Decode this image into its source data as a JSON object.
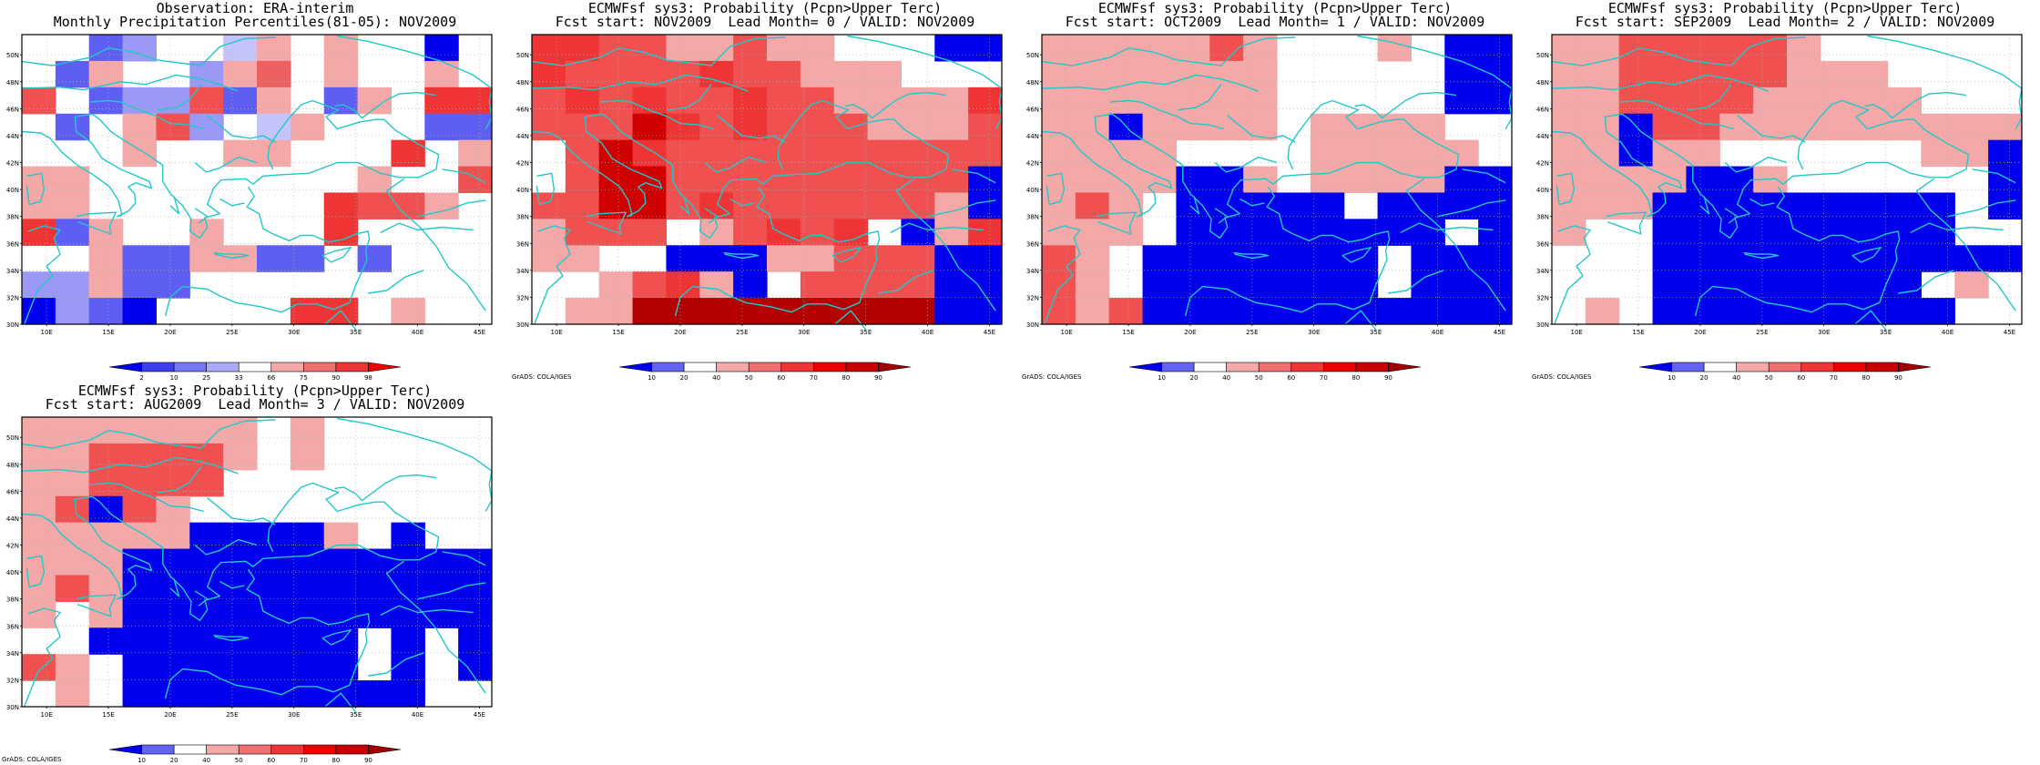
{
  "panels": [
    {
      "title1": "Observation: ERA-interim",
      "title2": "Monthly Precipitation Percentiles(81-05): NOV2009",
      "colorbar": {
        "labels": [
          "2",
          "10",
          "25",
          "33",
          "66",
          "75",
          "90",
          "98"
        ],
        "colors": [
          "#0000ee",
          "#3d3df2",
          "#7777f5",
          "#aaaaf8",
          "#ffffff",
          "#f4a8a8",
          "#f07070",
          "#ee3434",
          "#ee0000"
        ]
      },
      "show_grads_tag": false,
      "grid": [
        "WWMHWWKLWLWWNW",
        "WMLWWHLPWLWWLW",
        "RWMHHRMLWMLWSS",
        "WMWLRHWKLWWWMM",
        "WWWLWWLLWWWSWL",
        "LLWWWWWWWWLWWR",
        "LLWWWWWWWSRRLW",
        "SMLWWLWWWSWWWW",
        "WWLMMLLMMWMWWW",
        "HHLMMWWWWWWWWW",
        "NHMNWWWWSSWLWW"
      ]
    },
    {
      "title1": "ECMWFsf sys3: Probability (Pcpn>Upper Terc)",
      "title2": "Fcst start: NOV2009  Lead Month= 0 / VALID: NOV2009",
      "colorbar": {
        "labels": [
          "10",
          "20",
          "40",
          "50",
          "60",
          "70",
          "80",
          "90"
        ],
        "colors": [
          "#0000ee",
          "#6464f4",
          "#ffffff",
          "#f4a8a8",
          "#f07070",
          "#ee3434",
          "#ee0000",
          "#c80000",
          "#a00000"
        ]
      },
      "show_grads_tag": true,
      "grid": [
        "SSRRLLRLLWWWNN",
        "SRRRRSRRLLLWWW",
        "RSRSRRSRRLLLLS",
        "RRRFSRSRRRLLLR",
        "WRFSRRRRRRRRRR",
        "WRFFRRRRRRRRRN",
        "RRFFRSRRRRRRLN",
        "LRRRWLRSRSWNLS",
        "LLWWNNNLLRRRNN",
        "WWLRSLNWRRRRNN",
        "WLLDDDDDDDDDNN"
      ]
    },
    {
      "title1": "ECMWFsf sys3: Probability (Pcpn>Upper Terc)",
      "title2": "Fcst start: OCT2009  Lead Month= 1 / VALID: NOV2009",
      "colorbar": {
        "labels": [
          "10",
          "20",
          "40",
          "50",
          "60",
          "70",
          "80",
          "90"
        ],
        "colors": [
          "#0000ee",
          "#6464f4",
          "#ffffff",
          "#f4a8a8",
          "#f07070",
          "#ee3434",
          "#ee0000",
          "#c80000",
          "#a00000"
        ]
      },
      "show_grads_tag": true,
      "grid": [
        "LLLLLRLWWWLWNN",
        "LLLLLLLWWWWWNN",
        "LLLLLLLWWWWWNN",
        "LLNLLLLWLLLLWW",
        "LLLLWWWWLLLLLW",
        "LLLLNNLWLLLLNN",
        "LRLWNNNNNWNNNN",
        "LLLWNNNNNNNNWN",
        "RLWNNNNNNNWNNN",
        "RLWNNNNNNNWNNN",
        "RLRNNNNNNNNNNN"
      ]
    },
    {
      "title1": "ECMWFsf sys3: Probability (Pcpn>Upper Terc)",
      "title2": "Fcst start: SEP2009  Lead Month= 2 / VALID: NOV2009",
      "colorbar": {
        "labels": [
          "10",
          "20",
          "40",
          "50",
          "60",
          "70",
          "80",
          "90"
        ],
        "colors": [
          "#0000ee",
          "#6464f4",
          "#ffffff",
          "#f4a8a8",
          "#f07070",
          "#ee3434",
          "#ee0000",
          "#c80000",
          "#a00000"
        ]
      },
      "show_grads_tag": true,
      "grid": [
        "LLRRRRRLWWWWWW",
        "LLRRRRRLLLWWWW",
        "LLRRRRLLLLLWWW",
        "LLNRRLLLLLLLLL",
        "LLNLLWWWWWWLLN",
        "LLLLNNLWWWWWWN",
        "LLLNNNNNNNNNWN",
        "LWWNNNNNNNNNWW",
        "WWWNNNNNNNNNNN",
        "WWWNNNNNNNNWLW",
        "WLWNNNNNNNNNWW"
      ]
    },
    {
      "title1": "ECMWFsf sys3: Probability (Pcpn>Upper Terc)",
      "title2": "Fcst start: AUG2009  Lead Month= 3 / VALID: NOV2009",
      "colorbar": {
        "labels": [
          "10",
          "20",
          "40",
          "50",
          "60",
          "70",
          "80",
          "90"
        ],
        "colors": [
          "#0000ee",
          "#6464f4",
          "#ffffff",
          "#f4a8a8",
          "#f07070",
          "#ee3434",
          "#ee0000",
          "#c80000",
          "#a00000"
        ]
      },
      "show_grads_tag": true,
      "grid": [
        "LLLLLLLWLWWWWW",
        "LLRRRRLWLWWWWW",
        "LLRRRRWWWWWWWW",
        "LRNRLWWWWWWWWW",
        "LLLLLNNNNLWNWW",
        "LLLNNNNNNNNNNN",
        "LRLNNNNNNNNNNN",
        "LWLNNNNNNNNNNN",
        "WWNNNNNNNNWNWN",
        "RLWNNNNNNNWNWN",
        "WLWNNNNNNNNNWW"
      ]
    }
  ],
  "color_codes": {
    "W": "#ffffff",
    "N": "#0000ee",
    "S": "#ee3434",
    "R": "#f05050",
    "L": "#f4a8a8",
    "H": "#9a9af6",
    "M": "#5e5ef2",
    "K": "#c4c4fa",
    "P": "#ee6060",
    "F": "#d00000",
    "D": "#b40000"
  },
  "lat_labels": [
    "30N",
    "32N",
    "34N",
    "36N",
    "38N",
    "40N",
    "42N",
    "44N",
    "46N",
    "48N",
    "50N"
  ],
  "lon_labels": [
    "10E",
    "15E",
    "20E",
    "25E",
    "30E",
    "35E",
    "40E",
    "45E"
  ],
  "grads_tag": "GrADS: COLA/IGES",
  "coastline_color": "#22c8c8"
}
